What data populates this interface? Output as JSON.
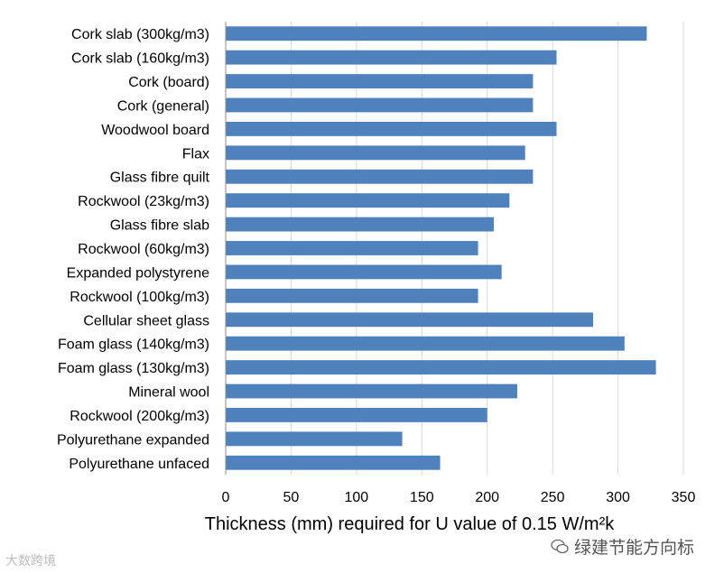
{
  "chart_data": {
    "type": "bar",
    "orientation": "horizontal",
    "title": "",
    "xlabel": "Thickness (mm) required for U value of 0.15 W/m²k",
    "ylabel": "",
    "xlim": [
      0,
      350
    ],
    "xticks": [
      "0",
      "50",
      "100",
      "150",
      "200",
      "250",
      "300",
      "350"
    ],
    "grid": "vertical",
    "bar_color": "#4f81bd",
    "categories": [
      "Cork slab (300kg/m3)",
      "Cork slab (160kg/m3)",
      "Cork (board)",
      "Cork (general)",
      "Woodwool board",
      "Flax",
      "Glass fibre quilt",
      "Rockwool (23kg/m3)",
      "Glass fibre slab",
      "Rockwool (60kg/m3)",
      "Expanded polystyrene",
      "Rockwool (100kg/m3)",
      "Cellular sheet glass",
      "Foam glass (140kg/m3)",
      "Foam glass (130kg/m3)",
      "Mineral wool",
      "Rockwool (200kg/m3)",
      "Polyurethane expanded",
      "Polyurethane unfaced"
    ],
    "values": [
      322,
      253,
      235,
      235,
      253,
      229,
      235,
      217,
      205,
      193,
      211,
      193,
      281,
      305,
      329,
      223,
      200,
      135,
      164
    ]
  },
  "watermark": {
    "left": "大数跨境",
    "right": "绿建节能方向标"
  }
}
